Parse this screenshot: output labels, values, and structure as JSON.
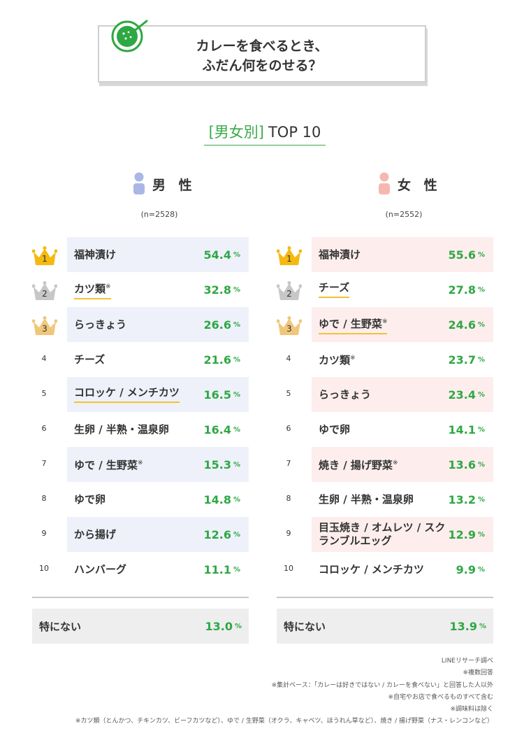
{
  "title": {
    "line1": "カレーを食べるとき、",
    "line2": "ふだん何をのせる？"
  },
  "subtitle": {
    "open_bracket": "[",
    "gender": "男女別",
    "close_bracket": "]",
    "top": "TOP 10"
  },
  "colors": {
    "accent_green": "#2ea843",
    "male_shade": "#eef1fa",
    "female_shade": "#fdeeed",
    "male_icon": "#aab6e6",
    "female_icon": "#f6b7b0",
    "underline": "#f2c230",
    "gold": "#f5b90f",
    "silver": "#c7c7c7",
    "bronze": "#f0c77a"
  },
  "chart_data": [
    {
      "type": "table",
      "group": "男 性",
      "sample": "(n=2528)",
      "unit": "%",
      "rows": [
        {
          "rank": "1",
          "item": "福神漬け",
          "note": "",
          "value": "54.4"
        },
        {
          "rank": "2",
          "item": "カツ類",
          "note": "※",
          "value": "32.8"
        },
        {
          "rank": "3",
          "item": "らっきょう",
          "note": "",
          "value": "26.6"
        },
        {
          "rank": "4",
          "item": "チーズ",
          "note": "",
          "value": "21.6"
        },
        {
          "rank": "5",
          "item": "コロッケ / メンチカツ",
          "note": "",
          "value": "16.5"
        },
        {
          "rank": "6",
          "item": "生卵 / 半熟・温泉卵",
          "note": "",
          "value": "16.4"
        },
        {
          "rank": "7",
          "item": "ゆで / 生野菜",
          "note": "※",
          "value": "15.3"
        },
        {
          "rank": "8",
          "item": "ゆで卵",
          "note": "",
          "value": "14.8"
        },
        {
          "rank": "9",
          "item": "から揚げ",
          "note": "",
          "value": "12.6"
        },
        {
          "rank": "10",
          "item": "ハンバーグ",
          "note": "",
          "value": "11.1"
        }
      ],
      "none": {
        "item": "特にない",
        "value": "13.0"
      }
    },
    {
      "type": "table",
      "group": "女 性",
      "sample": "(n=2552)",
      "unit": "%",
      "rows": [
        {
          "rank": "1",
          "item": "福神漬け",
          "note": "",
          "value": "55.6"
        },
        {
          "rank": "2",
          "item": "チーズ",
          "note": "",
          "value": "27.8"
        },
        {
          "rank": "3",
          "item": "ゆで / 生野菜",
          "note": "※",
          "value": "24.6"
        },
        {
          "rank": "4",
          "item": "カツ類",
          "note": "※",
          "value": "23.7"
        },
        {
          "rank": "5",
          "item": "らっきょう",
          "note": "",
          "value": "23.4"
        },
        {
          "rank": "6",
          "item": "ゆで卵",
          "note": "",
          "value": "14.1"
        },
        {
          "rank": "7",
          "item": "焼き / 揚げ野菜",
          "note": "※",
          "value": "13.6"
        },
        {
          "rank": "8",
          "item": "生卵 / 半熟・温泉卵",
          "note": "",
          "value": "13.2"
        },
        {
          "rank": "9",
          "item": "目玉焼き / オムレツ / スクランブルエッグ",
          "note": "",
          "value": "12.9"
        },
        {
          "rank": "10",
          "item": "コロッケ / メンチカツ",
          "note": "",
          "value": "9.9"
        }
      ],
      "none": {
        "item": "特にない",
        "value": "13.9"
      }
    }
  ],
  "notes": [
    "LINEリサーチ調べ",
    "※複数回答",
    "※集計ベース：「カレーは好きではない / カレーを食べない」と回答した人以外",
    "※自宅やお店で食べるものすべて含む",
    "※調味料は除く",
    "※カツ類（とんかつ、チキンカツ、ビーフカツなど）、ゆで / 生野菜（オクラ、キャベツ、ほうれん草など）、焼き / 揚げ野菜（ナス・レンコンなど）"
  ]
}
